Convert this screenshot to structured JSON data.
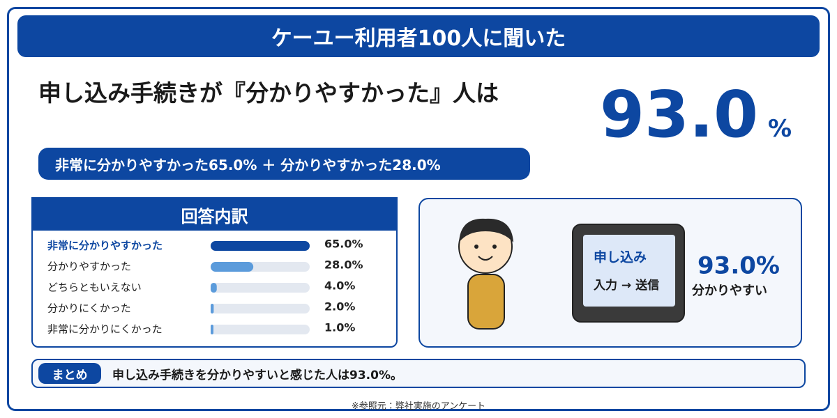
{
  "header": {
    "title": "ケーユー利用者100人に聞いた"
  },
  "headline": {
    "text": "申し込み手続きが『分かりやすかった』人は",
    "value": "93.0",
    "unit": "%",
    "detail": "非常に分かりやすかった65.0% ＋ 分かりやすかった28.0%"
  },
  "breakdown": {
    "title": "回答内訳",
    "categories": [
      "非常に分かりやすかった",
      "分かりやすかった",
      "どちらともいえない",
      "分かりにくかった",
      "非常に分かりにくかった"
    ],
    "values": [
      65,
      28,
      4,
      2,
      1
    ],
    "value_labels": [
      "65.0%",
      "28.0%",
      "4.0%",
      "2.0%",
      "1.0%"
    ],
    "colors": [
      "#0d47a1",
      "#5b9bdb",
      "#5b9bdb",
      "#5b9bdb",
      "#5b9bdb"
    ]
  },
  "illustration": {
    "screen_title": "申し込み",
    "screen_flow": "入力 → 送信",
    "value": "93.0%",
    "caption": "分かりやすい"
  },
  "summary": {
    "label": "まとめ",
    "text": "申し込み手続きを分かりやすいと感じた人は93.0%。"
  },
  "footnote": "※参照元：弊社実施のアンケート"
}
